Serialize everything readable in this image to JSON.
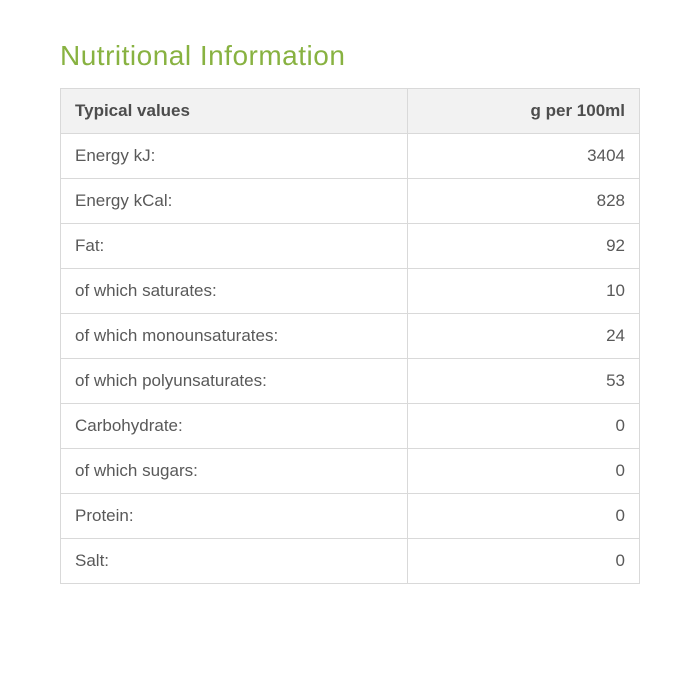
{
  "title": "Nutritional Information",
  "title_color": "#88b241",
  "colors": {
    "border": "#d9d9d9",
    "header_bg": "#f2f2f2",
    "text": "#595959",
    "header_text": "#4d4d4d"
  },
  "columns": {
    "label": "Typical values",
    "value": "g per 100ml"
  },
  "rows": [
    {
      "label": "Energy kJ:",
      "value": "3404"
    },
    {
      "label": "Energy kCal:",
      "value": "828"
    },
    {
      "label": "Fat:",
      "value": "92"
    },
    {
      "label": "of which saturates:",
      "value": "10"
    },
    {
      "label": "of which monounsaturates:",
      "value": "24"
    },
    {
      "label": "of which polyunsaturates:",
      "value": "53"
    },
    {
      "label": "Carbohydrate:",
      "value": "0"
    },
    {
      "label": "of which sugars:",
      "value": "0"
    },
    {
      "label": "Protein:",
      "value": "0"
    },
    {
      "label": "Salt:",
      "value": "0"
    }
  ]
}
